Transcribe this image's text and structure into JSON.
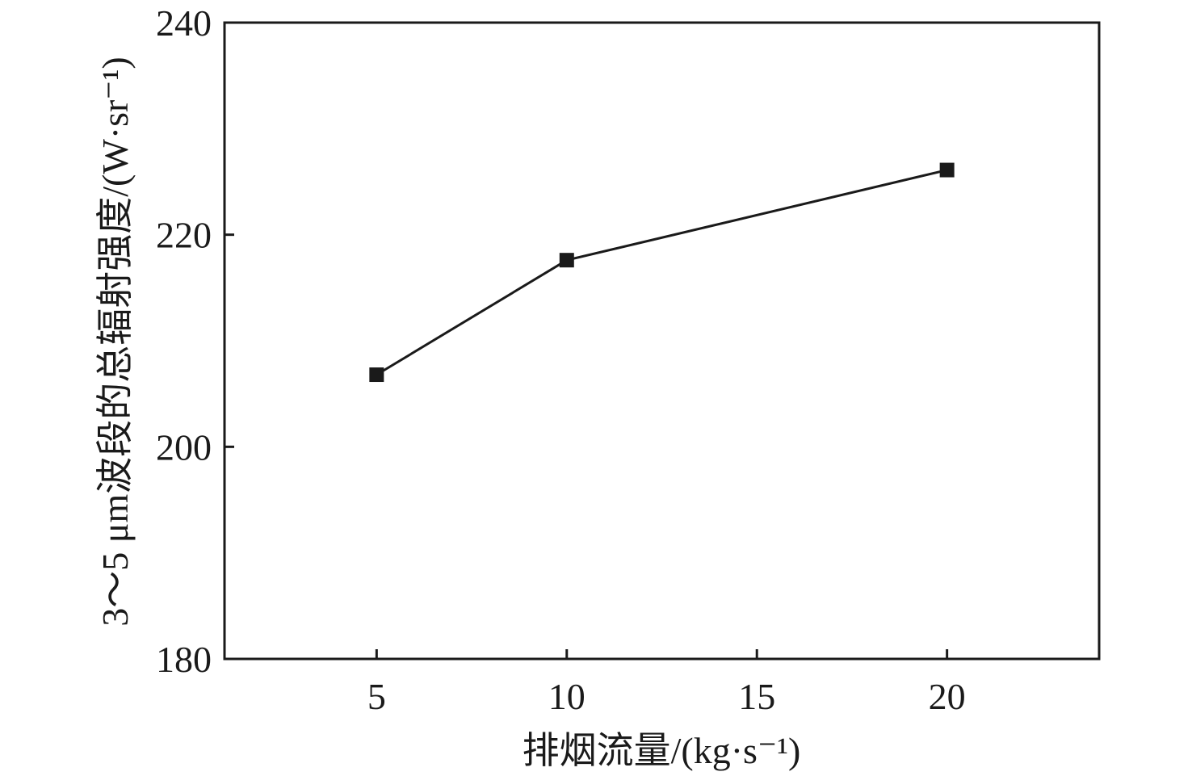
{
  "chart_data": {
    "type": "line",
    "x": [
      5,
      10,
      20
    ],
    "series": [
      {
        "values": [
          206.8,
          217.6,
          226.1
        ]
      }
    ],
    "xlabel": "排烟流量/(kg·s⁻¹)",
    "ylabel": "3～5 μm波段的总辐射强度/(W·sr⁻¹)",
    "xlim": [
      1,
      24
    ],
    "ylim": [
      180,
      240
    ],
    "xticks": [
      5,
      10,
      15,
      20
    ],
    "yticks": [
      180,
      200,
      220,
      240
    ],
    "marker": "square",
    "line_color": "#1a1a1a",
    "grid": false
  }
}
